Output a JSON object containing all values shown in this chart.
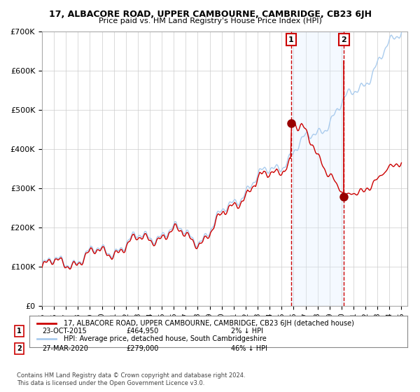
{
  "title": "17, ALBACORE ROAD, UPPER CAMBOURNE, CAMBRIDGE, CB23 6JH",
  "subtitle": "Price paid vs. HM Land Registry's House Price Index (HPI)",
  "legend_line1": "17, ALBACORE ROAD, UPPER CAMBOURNE, CAMBRIDGE, CB23 6JH (detached house)",
  "legend_line2": "HPI: Average price, detached house, South Cambridgeshire",
  "annotation1_label": "1",
  "annotation1_date": "23-OCT-2015",
  "annotation1_price": 464950,
  "annotation1_text": "2% ↓ HPI",
  "annotation2_label": "2",
  "annotation2_date": "27-MAR-2020",
  "annotation2_price": 279000,
  "annotation2_text": "46% ↓ HPI",
  "x_start_year": 1995,
  "x_end_year": 2025,
  "y_min": 0,
  "y_max": 700000,
  "hpi_line_color": "#aaccee",
  "price_line_color": "#cc0000",
  "marker_color": "#990000",
  "dashed_line_color": "#cc0000",
  "shading_color": "#ddeeff",
  "annotation_box_color": "#cc0000",
  "grid_color": "#cccccc",
  "background_color": "#ffffff",
  "footnote": "Contains HM Land Registry data © Crown copyright and database right 2024.\nThis data is licensed under the Open Government Licence v3.0."
}
